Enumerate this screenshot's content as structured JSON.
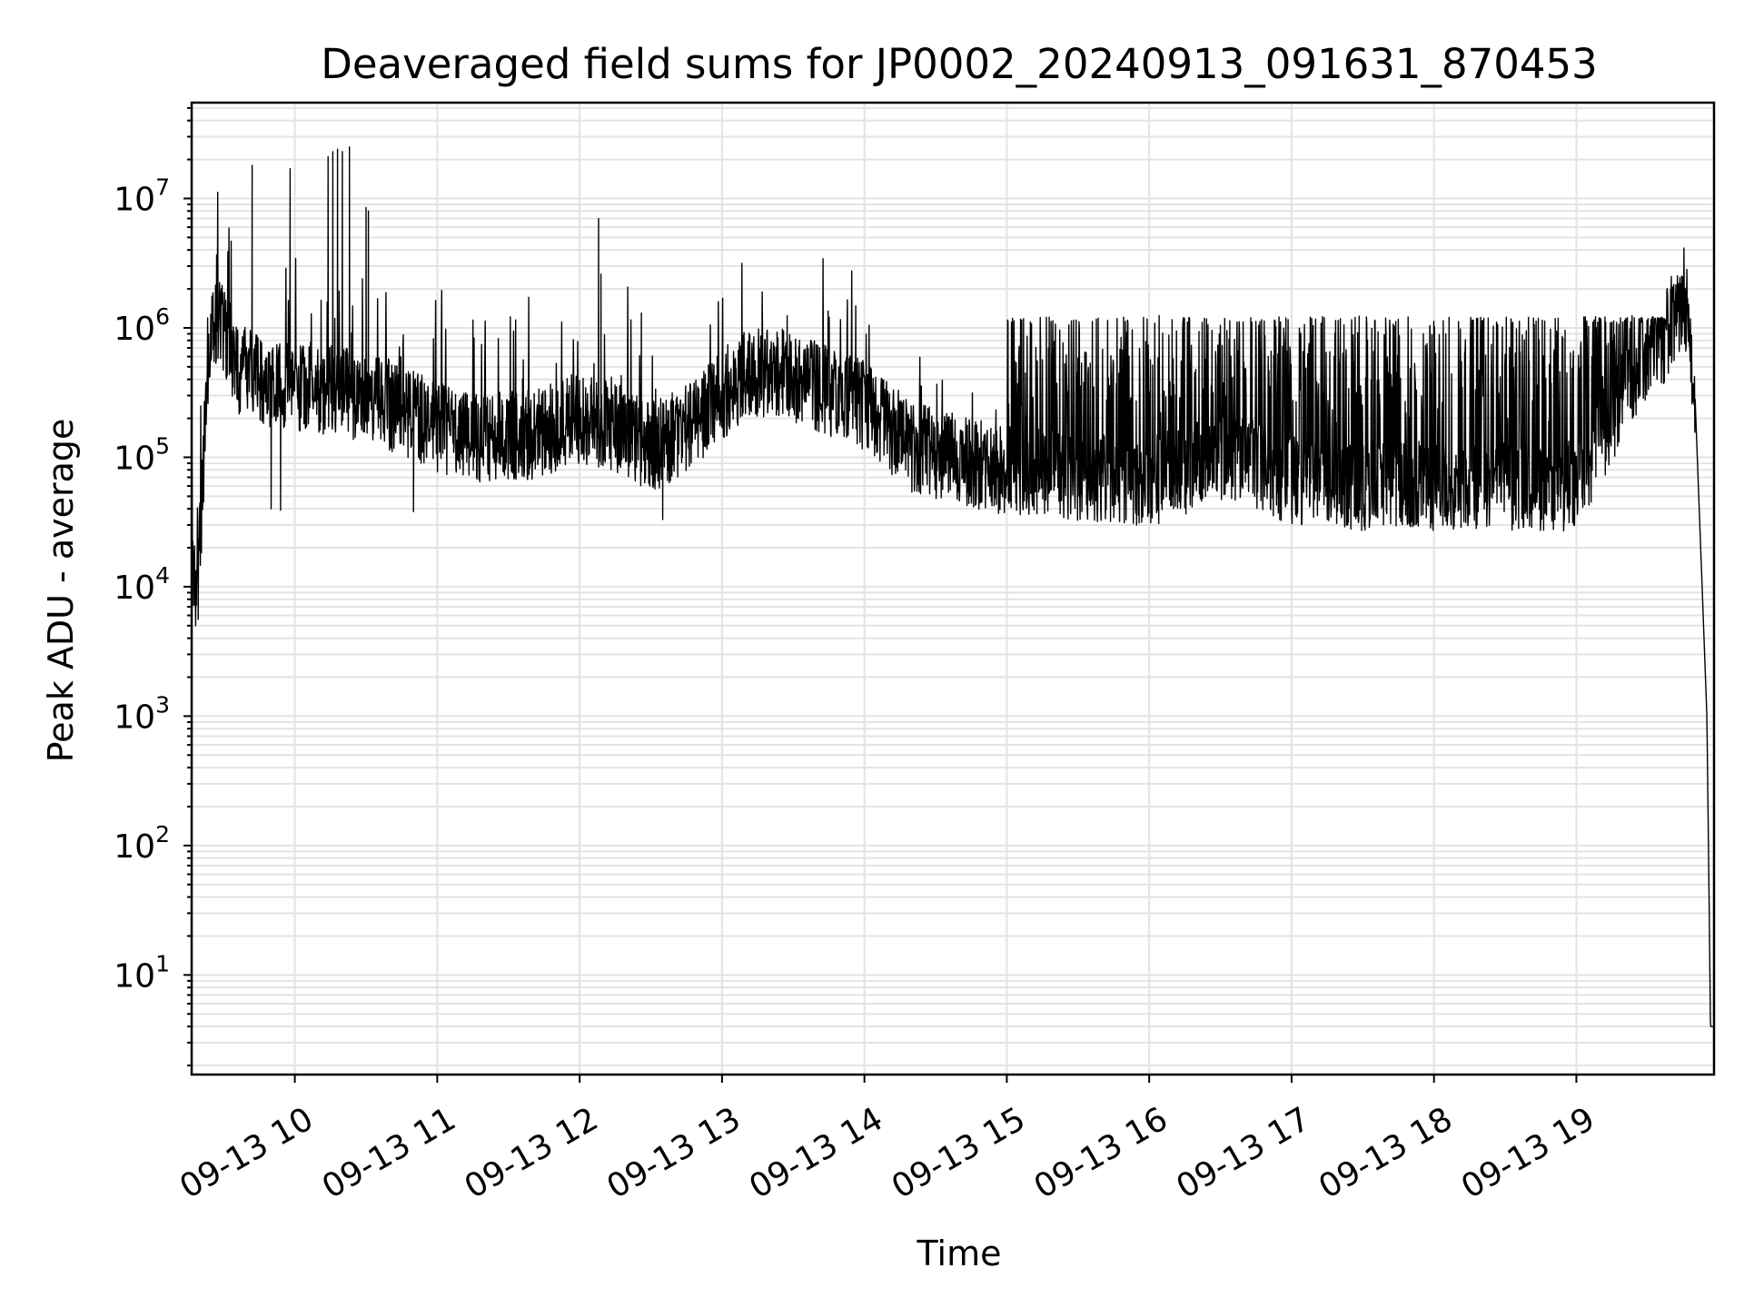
{
  "chart_data": {
    "type": "line",
    "title": "Deaveraged field sums for JP0002_20240913_091631_870453",
    "xlabel": "Time",
    "ylabel": "Peak ADU - average",
    "x_scale": "time",
    "y_scale": "log",
    "xlim": [
      "2024-09-13T09:16:31",
      "2024-09-13T19:58:00"
    ],
    "ylim": [
      1.7,
      55000000
    ],
    "grid": true,
    "legend": "none",
    "x_ticks": [
      {
        "time": "2024-09-13T10:00",
        "label": "09-13 10"
      },
      {
        "time": "2024-09-13T11:00",
        "label": "09-13 11"
      },
      {
        "time": "2024-09-13T12:00",
        "label": "09-13 12"
      },
      {
        "time": "2024-09-13T13:00",
        "label": "09-13 13"
      },
      {
        "time": "2024-09-13T14:00",
        "label": "09-13 14"
      },
      {
        "time": "2024-09-13T15:00",
        "label": "09-13 15"
      },
      {
        "time": "2024-09-13T16:00",
        "label": "09-13 16"
      },
      {
        "time": "2024-09-13T17:00",
        "label": "09-13 17"
      },
      {
        "time": "2024-09-13T18:00",
        "label": "09-13 18"
      },
      {
        "time": "2024-09-13T19:00",
        "label": "09-13 19"
      }
    ],
    "y_ticks": [
      {
        "value": 10,
        "base": "10",
        "exp": "1"
      },
      {
        "value": 100,
        "base": "10",
        "exp": "2"
      },
      {
        "value": 1000,
        "base": "10",
        "exp": "3"
      },
      {
        "value": 10000,
        "base": "10",
        "exp": "4"
      },
      {
        "value": 100000,
        "base": "10",
        "exp": "5"
      },
      {
        "value": 1000000,
        "base": "10",
        "exp": "6"
      },
      {
        "value": 10000000,
        "base": "10",
        "exp": "7"
      }
    ],
    "series": [
      {
        "color": "#000000",
        "baseline": [
          [
            "2024-09-13T09:16:31",
            12000
          ],
          [
            "2024-09-13T09:19:00",
            8000
          ],
          [
            "2024-09-13T09:22:00",
            150000
          ],
          [
            "2024-09-13T09:25:00",
            1100000
          ],
          [
            "2024-09-13T09:30:00",
            1000000
          ],
          [
            "2024-09-13T09:35:00",
            500000
          ],
          [
            "2024-09-13T09:45:00",
            400000
          ],
          [
            "2024-09-13T10:00:00",
            350000
          ],
          [
            "2024-09-13T10:20:00",
            320000
          ],
          [
            "2024-09-13T10:40:00",
            250000
          ],
          [
            "2024-09-13T11:00:00",
            170000
          ],
          [
            "2024-09-13T11:20:00",
            140000
          ],
          [
            "2024-09-13T11:40:00",
            150000
          ],
          [
            "2024-09-13T12:00:00",
            200000
          ],
          [
            "2024-09-13T12:15:00",
            170000
          ],
          [
            "2024-09-13T12:30:00",
            120000
          ],
          [
            "2024-09-13T12:45:00",
            160000
          ],
          [
            "2024-09-13T13:00:00",
            300000
          ],
          [
            "2024-09-13T13:10:00",
            450000
          ],
          [
            "2024-09-13T13:25:00",
            450000
          ],
          [
            "2024-09-13T13:40:00",
            350000
          ],
          [
            "2024-09-13T14:00:00",
            250000
          ],
          [
            "2024-09-13T14:20:00",
            120000
          ],
          [
            "2024-09-13T14:40:00",
            95000
          ],
          [
            "2024-09-13T15:00:00",
            80000
          ],
          [
            "2024-09-13T15:30:00",
            70000
          ],
          [
            "2024-09-13T16:00:00",
            65000
          ],
          [
            "2024-09-13T16:35:00",
            100000
          ],
          [
            "2024-09-13T17:00:00",
            65000
          ],
          [
            "2024-09-13T17:30:00",
            60000
          ],
          [
            "2024-09-13T18:00:00",
            60000
          ],
          [
            "2024-09-13T18:30:00",
            60000
          ],
          [
            "2024-09-13T19:00:00",
            60000
          ],
          [
            "2024-09-13T19:20:00",
            300000
          ],
          [
            "2024-09-13T19:35:00",
            700000
          ],
          [
            "2024-09-13T19:42:00",
            1300000
          ],
          [
            "2024-09-13T19:47:00",
            1200000
          ],
          [
            "2024-09-13T19:50:00",
            300000
          ],
          [
            "2024-09-13T19:53:00",
            10000
          ],
          [
            "2024-09-13T19:55:00",
            1000
          ],
          [
            "2024-09-13T19:56:00",
            30
          ],
          [
            "2024-09-13T19:56:30",
            4
          ],
          [
            "2024-09-13T19:58:00",
            4
          ]
        ],
        "spikes": [
          [
            "2024-09-13T09:42:00",
            18000000
          ],
          [
            "2024-09-13T09:58:00",
            17000000
          ],
          [
            "2024-09-13T10:14:00",
            21000000
          ],
          [
            "2024-09-13T10:16:00",
            23000000
          ],
          [
            "2024-09-13T10:18:00",
            24000000
          ],
          [
            "2024-09-13T10:20:00",
            23000000
          ],
          [
            "2024-09-13T10:23:00",
            25000000
          ],
          [
            "2024-09-13T10:30:00",
            8500000
          ],
          [
            "2024-09-13T10:31:00",
            8000000
          ],
          [
            "2024-09-13T12:08:00",
            7000000
          ],
          [
            "2024-09-13T12:09:00",
            2600000
          ],
          [
            "2024-09-13T12:26:00",
            1300000
          ],
          [
            "2024-09-13T19:40:00",
            2500000
          ]
        ],
        "dips": [
          [
            "2024-09-13T09:50:00",
            40000
          ],
          [
            "2024-09-13T09:54:00",
            39000
          ],
          [
            "2024-09-13T10:50:00",
            38000
          ],
          [
            "2024-09-13T12:35:00",
            33000
          ],
          [
            "2024-09-13T16:55:00",
            33000
          ],
          [
            "2024-09-13T18:15:00",
            36000
          ]
        ]
      }
    ]
  }
}
